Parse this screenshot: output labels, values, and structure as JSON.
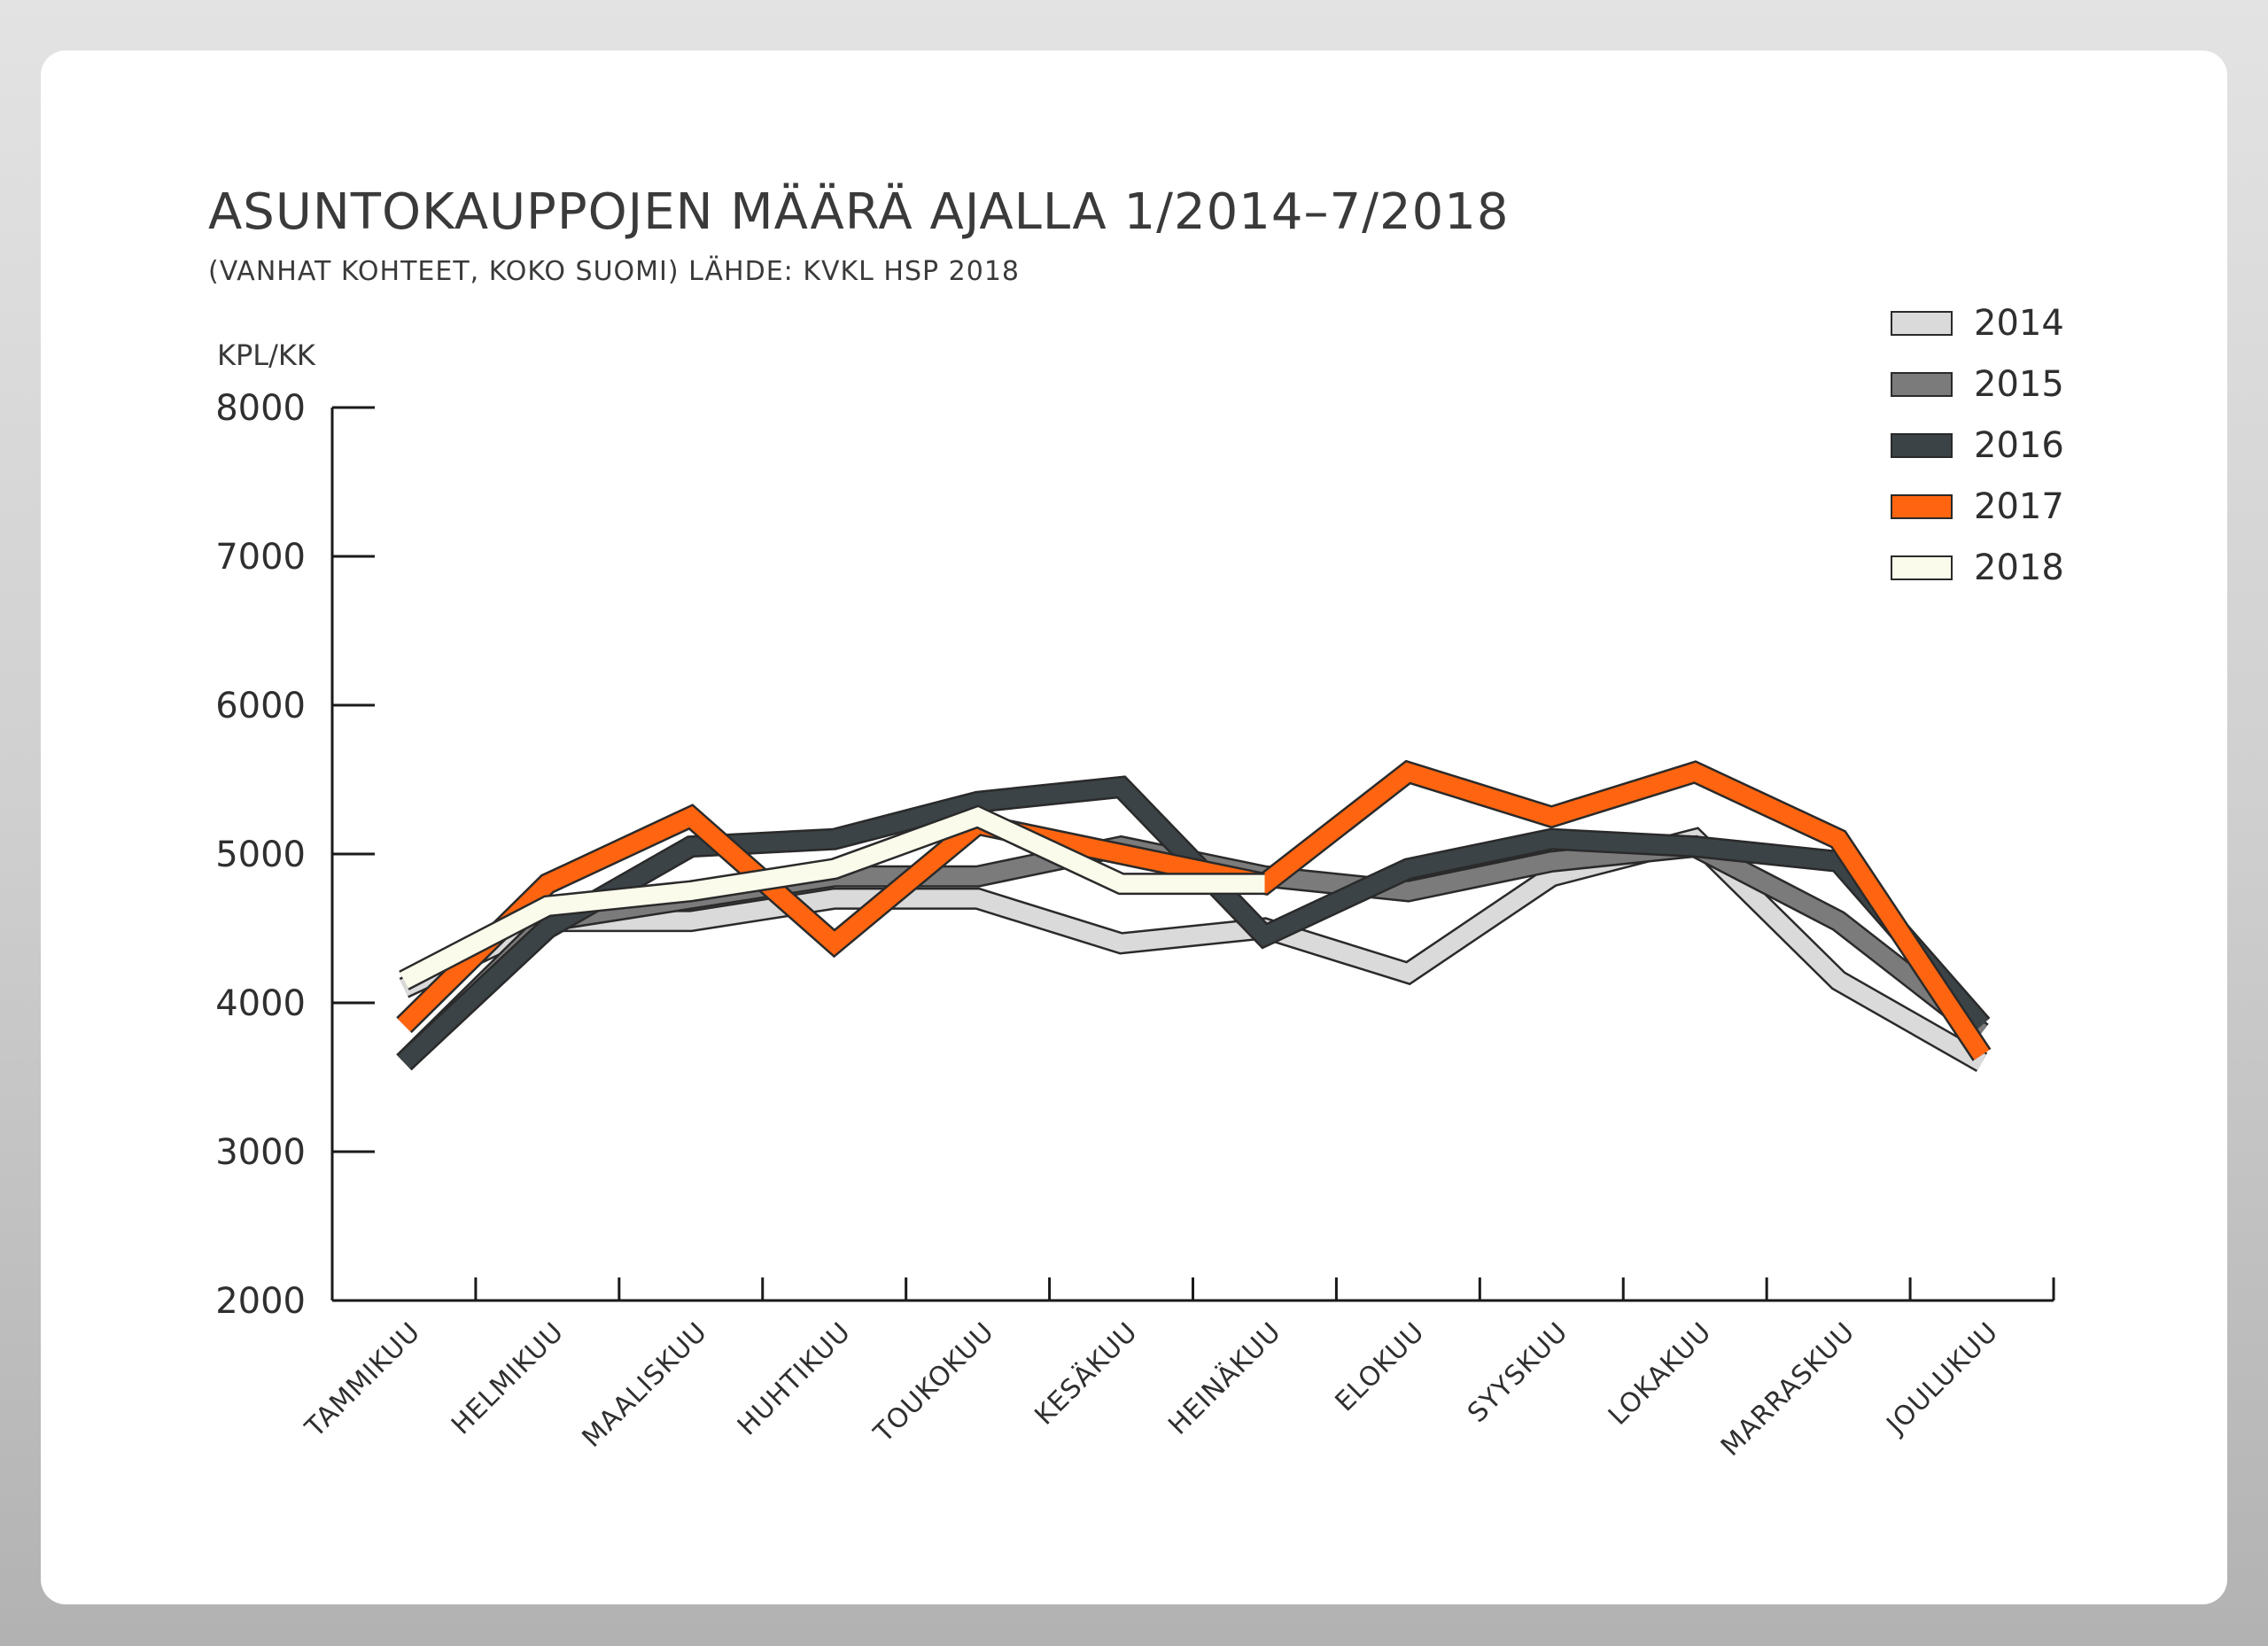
{
  "chart_data": {
    "type": "line",
    "title": "ASUNTOKAUPPOJEN MÄÄRÄ AJALLA 1/2014–7/2018",
    "subtitle": "(VANHAT KOHTEET, KOKO SUOMI) LÄHDE: KVKL HSP 2018",
    "ylabel": "KPL/KK",
    "xlabel": "",
    "ylim": [
      2000,
      8000
    ],
    "yticks": [
      2000,
      3000,
      4000,
      5000,
      6000,
      7000,
      8000
    ],
    "categories": [
      "TAMMIKUU",
      "HELMIKUU",
      "MAALISKUU",
      "HUHTIKUU",
      "TOUKOKUU",
      "KESÄKUU",
      "HEINÄKUU",
      "ELOKUU",
      "SYYSKUU",
      "LOKAKUU",
      "MARRASKUU",
      "JOULUKUU"
    ],
    "legend_position": "top-right",
    "grid": false,
    "series": [
      {
        "name": "2014",
        "color": "#dadada",
        "values": [
          4100,
          4550,
          4550,
          4700,
          4700,
          4400,
          4500,
          4200,
          4850,
          5100,
          4150,
          3600
        ]
      },
      {
        "name": "2015",
        "color": "#7b7b7b",
        "values": [
          3600,
          4550,
          4700,
          4850,
          4850,
          5050,
          4850,
          4750,
          4950,
          5050,
          4550,
          3800
        ]
      },
      {
        "name": "2016",
        "color": "#3b4347",
        "values": [
          3600,
          4500,
          5050,
          5100,
          5350,
          5450,
          4450,
          4900,
          5100,
          5050,
          4950,
          3850
        ]
      },
      {
        "name": "2017",
        "color": "#ff6510",
        "values": [
          3850,
          4800,
          5250,
          4400,
          5200,
          5000,
          4800,
          5550,
          5250,
          5550,
          5100,
          3650
        ]
      },
      {
        "name": "2018",
        "color": "#fbfbec",
        "values": [
          4150,
          4650,
          4750,
          4900,
          5250,
          4800,
          4800,
          null,
          null,
          null,
          null,
          null
        ]
      }
    ]
  }
}
